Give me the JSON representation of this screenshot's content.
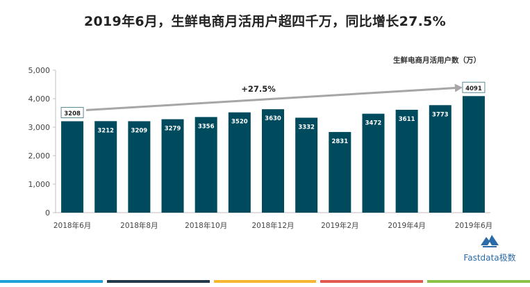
{
  "title": "2019年6月，生鲜电商月活用户超四千万，同比增长27.5%",
  "growth_label": "+27.5%",
  "logo": {
    "text": "Fastdata极数",
    "icon": "fastdata-mountain-icon"
  },
  "colors": {
    "bar": "#004a5e",
    "arrow": "#a6a6a6",
    "footer": [
      "#1fa0d8",
      "#243a4a",
      "#f5b731",
      "#e05a4f",
      "#8bc34a"
    ]
  },
  "chart_data": {
    "type": "bar",
    "title": "2019年6月，生鲜电商月活用户超四千万，同比增长27.5%",
    "ylabel": "生鲜电商月活用户数（万）",
    "xlabel": "",
    "categories": [
      "2018年6月",
      "2018年7月",
      "2018年8月",
      "2018年9月",
      "2018年10月",
      "2018年11月",
      "2018年12月",
      "2019年1月",
      "2019年2月",
      "2019年3月",
      "2019年4月",
      "2019年5月",
      "2019年6月"
    ],
    "x_tick_labels": [
      "2018年6月",
      "2018年8月",
      "2018年10月",
      "2018年12月",
      "2019年2月",
      "2019年4月",
      "2019年6月"
    ],
    "values": [
      3208,
      3212,
      3209,
      3279,
      3356,
      3520,
      3630,
      3332,
      2831,
      3472,
      3611,
      3773,
      4091
    ],
    "ylim": [
      0,
      5000
    ],
    "yticks": [
      "0",
      "1,000",
      "2,000",
      "3,000",
      "4,000",
      "5,000"
    ],
    "boxed_labels": [
      0,
      12
    ],
    "grid": false,
    "annotation": "+27.5%"
  }
}
